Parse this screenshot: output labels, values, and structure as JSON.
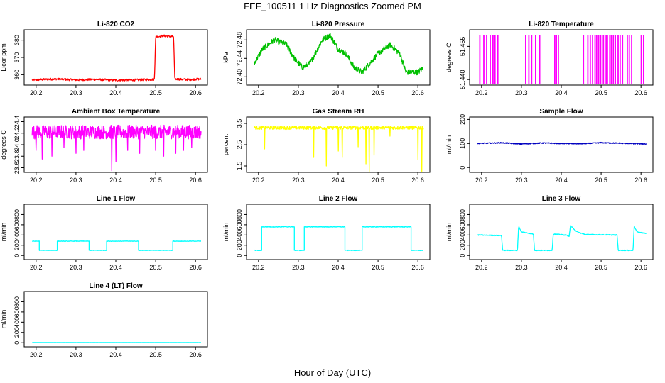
{
  "figure": {
    "title": "FEF_100511  1 Hz Diagnostics Zoomed PM",
    "xlabel": "Hour of Day (UTC)"
  },
  "chart_data": [
    {
      "type": "line",
      "title": "Li-820 CO2",
      "ylabel": "Licor ppm",
      "color": "#ff0000",
      "xlim": [
        20.17,
        20.63
      ],
      "ylim": [
        354,
        386
      ],
      "yticks": [
        "360",
        "370",
        "380"
      ],
      "ytick_values": [
        360,
        370,
        380
      ],
      "xticks": [
        "20.2",
        "20.3",
        "20.4",
        "20.5",
        "20.6"
      ],
      "xtick_values": [
        20.2,
        20.3,
        20.4,
        20.5,
        20.6
      ],
      "series": [
        {
          "name": "CO2",
          "x": [
            20.19,
            20.25,
            20.3,
            20.35,
            20.4,
            20.45,
            20.497,
            20.5,
            20.52,
            20.545,
            20.548,
            20.58,
            20.614
          ],
          "y": [
            357,
            357.5,
            357,
            357.3,
            356.8,
            357,
            357.3,
            382,
            382.5,
            382,
            357.5,
            357.2,
            357.5
          ],
          "noise": 0.6
        }
      ]
    },
    {
      "type": "line",
      "title": "Li-820 Pressure",
      "ylabel": "kPa",
      "color": "#00c000",
      "xlim": [
        20.17,
        20.63
      ],
      "ylim": [
        72.382,
        72.502
      ],
      "yticks": [
        "72.40",
        "72.44",
        "72.48"
      ],
      "ytick_values": [
        72.4,
        72.44,
        72.48
      ],
      "xticks": [
        "20.2",
        "20.3",
        "20.4",
        "20.5",
        "20.6"
      ],
      "xtick_values": [
        20.2,
        20.3,
        20.4,
        20.5,
        20.6
      ],
      "series": [
        {
          "name": "Pressure",
          "x": [
            20.19,
            20.21,
            20.24,
            20.27,
            20.29,
            20.31,
            20.33,
            20.36,
            20.38,
            20.4,
            20.42,
            20.44,
            20.46,
            20.48,
            20.5,
            20.53,
            20.555,
            20.57,
            20.6,
            20.614
          ],
          "y": [
            72.43,
            72.46,
            72.48,
            72.47,
            72.44,
            72.42,
            72.43,
            72.48,
            72.49,
            72.46,
            72.45,
            72.42,
            72.41,
            72.43,
            72.45,
            72.47,
            72.45,
            72.41,
            72.41,
            72.42
          ],
          "noise": 0.006
        }
      ]
    },
    {
      "type": "line",
      "title": "Li-820 Temperature",
      "ylabel": "degrees C",
      "color": "#ff00ff",
      "xlim": [
        20.17,
        20.63
      ],
      "ylim": [
        51.4375,
        51.4625
      ],
      "yticks": [
        "51.440",
        "51.455"
      ],
      "ytick_values": [
        51.44,
        51.455
      ],
      "xticks": [
        "20.2",
        "20.3",
        "20.4",
        "20.5",
        "20.6"
      ],
      "xtick_values": [
        20.2,
        20.3,
        20.4,
        20.5,
        20.6
      ],
      "series": [
        {
          "name": "Temperature",
          "spikes": [
            20.195,
            20.205,
            20.212,
            20.221,
            20.228,
            20.233,
            20.24,
            20.31,
            20.318,
            20.325,
            20.335,
            20.345,
            20.383,
            20.387,
            20.392,
            20.455,
            20.466,
            20.472,
            20.478,
            20.484,
            20.488,
            20.493,
            20.498,
            20.505,
            20.512,
            20.515,
            20.521,
            20.525,
            20.53,
            20.535,
            20.542,
            20.547,
            20.553,
            20.565,
            20.57,
            20.576,
            20.6,
            20.606
          ],
          "base": 51.4375,
          "top": 51.46
        }
      ]
    },
    {
      "type": "line",
      "title": "Ambient Box Temperature",
      "ylabel": "degrees C",
      "color": "#ff00ff",
      "xlim": [
        20.17,
        20.63
      ],
      "ylim": [
        23.52,
        24.48
      ],
      "yticks": [
        "23.6",
        "23.8",
        "24.0",
        "24.2",
        "24.4"
      ],
      "ytick_values": [
        23.6,
        23.8,
        24.0,
        24.2,
        24.4
      ],
      "xticks": [
        "20.2",
        "20.3",
        "20.4",
        "20.5",
        "20.6"
      ],
      "xtick_values": [
        20.2,
        20.3,
        20.4,
        20.5,
        20.6
      ],
      "series": [
        {
          "name": "Ambient",
          "x": [
            20.19,
            20.614
          ],
          "y": [
            24.22,
            24.22
          ],
          "noise": 0.12,
          "dips": [
            [
              20.2,
              23.9
            ],
            [
              20.215,
              23.75
            ],
            [
              20.24,
              23.8
            ],
            [
              20.27,
              23.95
            ],
            [
              20.3,
              23.85
            ],
            [
              20.32,
              23.9
            ],
            [
              20.39,
              23.55
            ],
            [
              20.4,
              23.7
            ],
            [
              20.43,
              23.9
            ],
            [
              20.46,
              23.85
            ],
            [
              20.5,
              23.9
            ],
            [
              20.52,
              23.8
            ],
            [
              20.55,
              23.85
            ],
            [
              20.57,
              23.9
            ],
            [
              20.59,
              23.95
            ]
          ]
        }
      ]
    },
    {
      "type": "line",
      "title": "Gas Stream RH",
      "ylabel": "percent",
      "color": "#ffff00",
      "xlim": [
        20.17,
        20.63
      ],
      "ylim": [
        1.2,
        3.8
      ],
      "yticks": [
        "1.5",
        "2.5",
        "3.5"
      ],
      "ytick_values": [
        1.5,
        2.5,
        3.5
      ],
      "xticks": [
        "20.2",
        "20.3",
        "20.4",
        "20.5",
        "20.6"
      ],
      "xtick_values": [
        20.2,
        20.3,
        20.4,
        20.5,
        20.6
      ],
      "series": [
        {
          "name": "RH",
          "x": [
            20.19,
            20.614
          ],
          "y": [
            3.3,
            3.3
          ],
          "noise": 0.08,
          "dips": [
            [
              20.215,
              2.3
            ],
            [
              20.338,
              1.9
            ],
            [
              20.37,
              1.5
            ],
            [
              20.4,
              2.2
            ],
            [
              20.41,
              1.9
            ],
            [
              20.45,
              2.4
            ],
            [
              20.47,
              1.6
            ],
            [
              20.478,
              1.25
            ],
            [
              20.49,
              2.0
            ],
            [
              20.53,
              2.9
            ],
            [
              20.6,
              1.8
            ],
            [
              20.61,
              1.25
            ]
          ]
        }
      ]
    },
    {
      "type": "line",
      "title": "Sample Flow",
      "ylabel": "ml/min",
      "color": "#0000c0",
      "xlim": [
        20.17,
        20.63
      ],
      "ylim": [
        -20,
        210
      ],
      "yticks": [
        "0",
        "100",
        "200"
      ],
      "ytick_values": [
        0,
        100,
        200
      ],
      "xticks": [
        "20.2",
        "20.3",
        "20.4",
        "20.5",
        "20.6"
      ],
      "xtick_values": [
        20.2,
        20.3,
        20.4,
        20.5,
        20.6
      ],
      "series": [
        {
          "name": "Sample",
          "x": [
            20.19,
            20.25,
            20.3,
            20.35,
            20.4,
            20.45,
            20.5,
            20.55,
            20.614
          ],
          "y": [
            100,
            103,
            98,
            102,
            100,
            99,
            103,
            101,
            98
          ],
          "noise": 2
        }
      ]
    },
    {
      "type": "line",
      "title": "Line 1 Flow",
      "ylabel": "ml/min",
      "color": "#00ffff",
      "xlim": [
        20.17,
        20.63
      ],
      "ylim": [
        -80,
        1000
      ],
      "yticks": [
        "0",
        "200",
        "400",
        "600",
        "800"
      ],
      "ytick_values": [
        0,
        200,
        400,
        600,
        800
      ],
      "xticks": [
        "20.2",
        "20.3",
        "20.4",
        "20.5",
        "20.6"
      ],
      "xtick_values": [
        20.2,
        20.3,
        20.4,
        20.5,
        20.6
      ],
      "series": [
        {
          "name": "Line1",
          "x": [
            20.19,
            20.208,
            20.208,
            20.253,
            20.253,
            20.333,
            20.333,
            20.377,
            20.377,
            20.457,
            20.457,
            20.543,
            20.543,
            20.614
          ],
          "y": [
            280,
            280,
            100,
            100,
            280,
            280,
            100,
            100,
            280,
            280,
            100,
            100,
            280,
            280
          ],
          "noise": 4
        }
      ]
    },
    {
      "type": "line",
      "title": "Line 2 Flow",
      "ylabel": "ml/min",
      "color": "#00ffff",
      "xlim": [
        20.17,
        20.63
      ],
      "ylim": [
        -80,
        1000
      ],
      "yticks": [
        "0",
        "200",
        "400",
        "600",
        "800"
      ],
      "ytick_values": [
        0,
        200,
        400,
        600,
        800
      ],
      "xticks": [
        "20.2",
        "20.3",
        "20.4",
        "20.5",
        "20.6"
      ],
      "xtick_values": [
        20.2,
        20.3,
        20.4,
        20.5,
        20.6
      ],
      "series": [
        {
          "name": "Line2",
          "x": [
            20.19,
            20.208,
            20.208,
            20.29,
            20.29,
            20.315,
            20.315,
            20.417,
            20.417,
            20.46,
            20.46,
            20.583,
            20.583,
            20.614
          ],
          "y": [
            100,
            100,
            560,
            560,
            100,
            100,
            560,
            560,
            100,
            100,
            560,
            560,
            100,
            100
          ],
          "noise": 6
        }
      ]
    },
    {
      "type": "line",
      "title": "Line 3 Flow",
      "ylabel": "ml/min",
      "color": "#00ffff",
      "xlim": [
        20.17,
        20.63
      ],
      "ylim": [
        -80,
        1000
      ],
      "yticks": [
        "0",
        "200",
        "400",
        "600",
        "800"
      ],
      "ytick_values": [
        0,
        200,
        400,
        600,
        800
      ],
      "xticks": [
        "20.2",
        "20.3",
        "20.4",
        "20.5",
        "20.6"
      ],
      "xtick_values": [
        20.2,
        20.3,
        20.4,
        20.5,
        20.6
      ],
      "series": [
        {
          "name": "Line3",
          "x": [
            20.19,
            20.25,
            20.253,
            20.29,
            20.293,
            20.3,
            20.33,
            20.333,
            20.377,
            20.38,
            20.41,
            20.42,
            20.423,
            20.44,
            20.46,
            20.54,
            20.543,
            20.58,
            20.583,
            20.59,
            20.614
          ],
          "y": [
            400,
            390,
            100,
            100,
            570,
            460,
            420,
            100,
            100,
            420,
            400,
            380,
            580,
            460,
            410,
            400,
            100,
            100,
            570,
            460,
            430
          ],
          "noise": 8
        }
      ]
    },
    {
      "type": "line",
      "title": "Line 4 (LT) Flow",
      "ylabel": "ml/min",
      "color": "#00ffff",
      "xlim": [
        20.17,
        20.63
      ],
      "ylim": [
        -80,
        1000
      ],
      "yticks": [
        "0",
        "200",
        "400",
        "600",
        "800"
      ],
      "ytick_values": [
        0,
        200,
        400,
        600,
        800
      ],
      "xticks": [
        "20.2",
        "20.3",
        "20.4",
        "20.5",
        "20.6"
      ],
      "xtick_values": [
        20.2,
        20.3,
        20.4,
        20.5,
        20.6
      ],
      "series": [
        {
          "name": "Line4",
          "x": [
            20.19,
            20.614
          ],
          "y": [
            4,
            4
          ],
          "noise": 1
        }
      ]
    }
  ]
}
